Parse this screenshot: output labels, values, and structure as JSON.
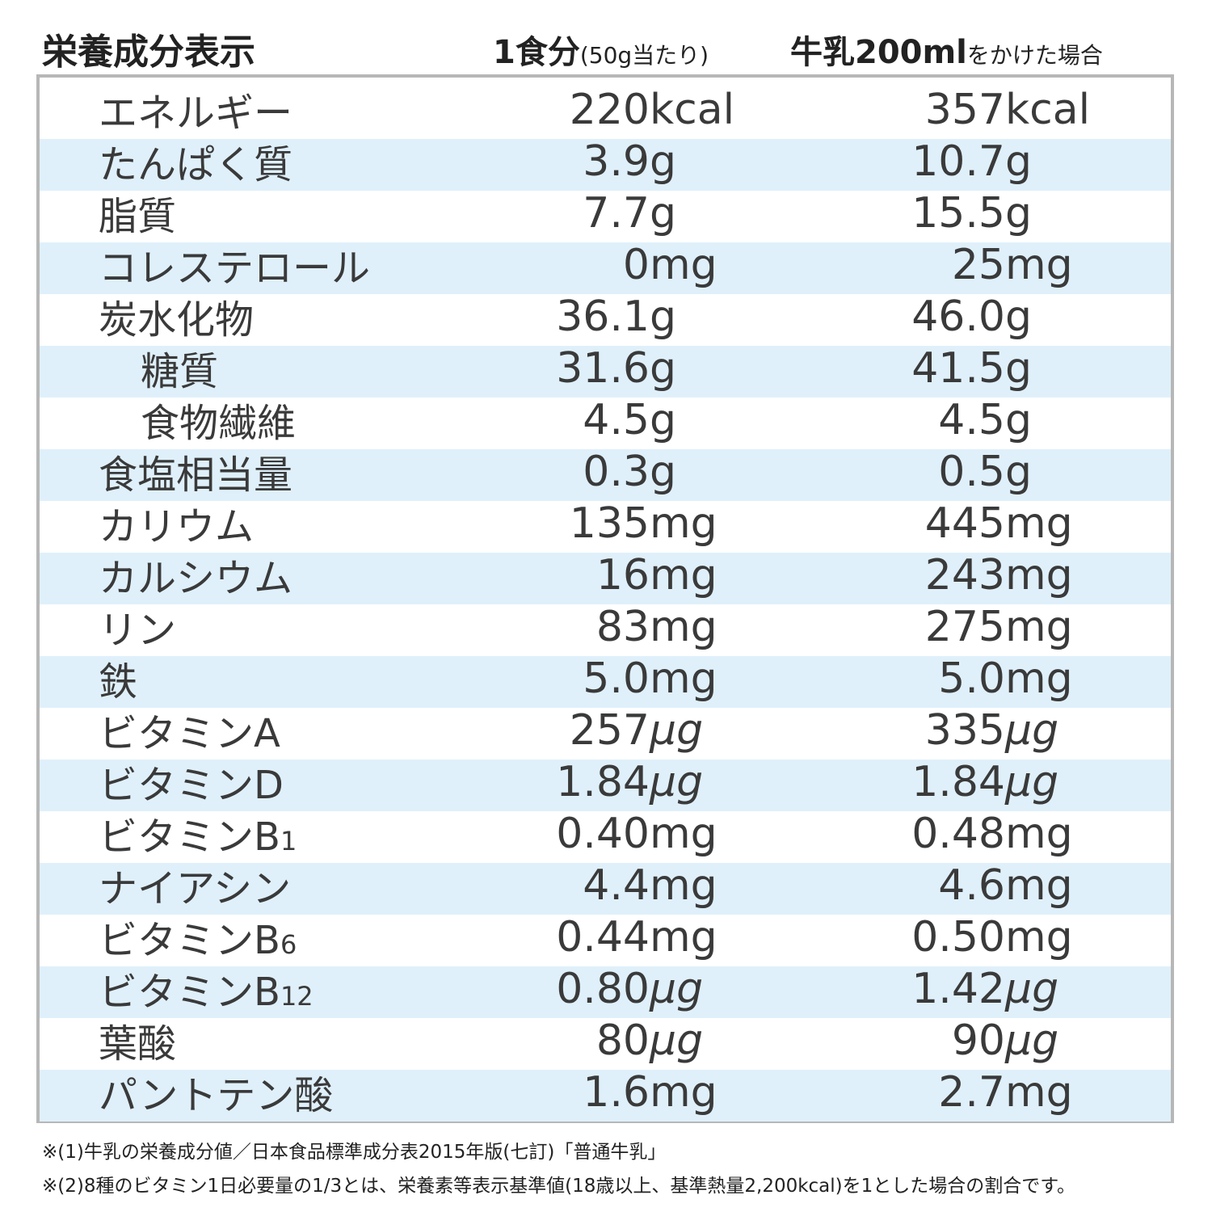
{
  "header": {
    "title": "栄養成分表示",
    "col1": {
      "main": "1食分",
      "sub": "(50g当たり)"
    },
    "col2": {
      "main": "牛乳200ml",
      "sub": "をかけた場合"
    }
  },
  "table": {
    "rows": [
      {
        "name": "エネルギー",
        "serving": [
          "220",
          "kcal"
        ],
        "with_milk": [
          "357",
          "kcal"
        ]
      },
      {
        "name": "たんぱく質",
        "serving": [
          "3.9",
          "g"
        ],
        "with_milk": [
          "10.7",
          "g"
        ]
      },
      {
        "name": "脂質",
        "serving": [
          "7.7",
          "g"
        ],
        "with_milk": [
          "15.5",
          "g"
        ]
      },
      {
        "name": "コレステロール",
        "serving": [
          "0",
          "mg"
        ],
        "with_milk": [
          "25",
          "mg"
        ]
      },
      {
        "name": "炭水化物",
        "serving": [
          "36.1",
          "g"
        ],
        "with_milk": [
          "46.0",
          "g"
        ]
      },
      {
        "name": "糖質",
        "serving": [
          "31.6",
          "g"
        ],
        "with_milk": [
          "41.5",
          "g"
        ]
      },
      {
        "name": "食物繊維",
        "serving": [
          "4.5",
          "g"
        ],
        "with_milk": [
          "4.5",
          "g"
        ]
      },
      {
        "name": "食塩相当量",
        "serving": [
          "0.3",
          "g"
        ],
        "with_milk": [
          "0.5",
          "g"
        ]
      },
      {
        "name": "カリウム",
        "serving": [
          "135",
          "mg"
        ],
        "with_milk": [
          "445",
          "mg"
        ]
      },
      {
        "name": "カルシウム",
        "serving": [
          "16",
          "mg"
        ],
        "with_milk": [
          "243",
          "mg"
        ]
      },
      {
        "name": "リン",
        "serving": [
          "83",
          "mg"
        ],
        "with_milk": [
          "275",
          "mg"
        ]
      },
      {
        "name": "鉄",
        "serving": [
          "5.0",
          "mg"
        ],
        "with_milk": [
          "5.0",
          "mg"
        ]
      },
      {
        "name": "ビタミンA",
        "serving": [
          "257",
          "μg"
        ],
        "with_milk": [
          "335",
          "μg"
        ]
      },
      {
        "name": "ビタミンD",
        "serving": [
          "1.84",
          "μg"
        ],
        "with_milk": [
          "1.84",
          "μg"
        ]
      },
      {
        "name": "ビタミンB",
        "sub": "1",
        "serving": [
          "0.40",
          "mg"
        ],
        "with_milk": [
          "0.48",
          "mg"
        ]
      },
      {
        "name": "ナイアシン",
        "serving": [
          "4.4",
          "mg"
        ],
        "with_milk": [
          "4.6",
          "mg"
        ]
      },
      {
        "name": "ビタミンB",
        "sub": "6",
        "serving": [
          "0.44",
          "mg"
        ],
        "with_milk": [
          "0.50",
          "mg"
        ]
      },
      {
        "name": "ビタミンB",
        "sub": "12",
        "serving": [
          "0.80",
          "μg"
        ],
        "with_milk": [
          "1.42",
          "μg"
        ]
      },
      {
        "name": "葉酸",
        "serving": [
          "80",
          "μg"
        ],
        "with_milk": [
          "90",
          "μg"
        ]
      },
      {
        "name": "パントテン酸",
        "serving": [
          "1.6",
          "mg"
        ],
        "with_milk": [
          "2.7",
          "mg"
        ]
      }
    ]
  },
  "footnotes": [
    "※(1)牛乳の栄養成分値／日本食品標準成分表2015年版(七訂)「普通牛乳」",
    "※(2)8種のビタミン1日必要量の1/3とは、栄養素等表示基準値(18歳以上、基準熱量2,200kcal)を1とした場合の割合です。"
  ]
}
